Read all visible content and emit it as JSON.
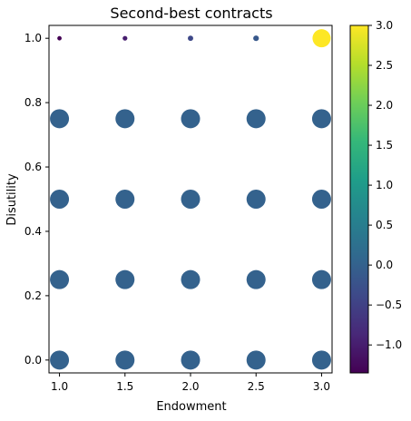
{
  "chart_data": {
    "type": "scatter",
    "title": "Second-best contracts",
    "xlabel": "Endowment",
    "ylabel": "Disutility",
    "xlim": [
      0.92,
      3.08
    ],
    "ylim": [
      -0.04,
      1.04
    ],
    "xticks": [
      1.0,
      1.5,
      2.0,
      2.5,
      3.0
    ],
    "xtick_labels": [
      "1.0",
      "1.5",
      "2.0",
      "2.5",
      "3.0"
    ],
    "yticks": [
      0.0,
      0.2,
      0.4,
      0.6,
      0.8,
      1.0
    ],
    "ytick_labels": [
      "0.0",
      "0.2",
      "0.4",
      "0.6",
      "0.8",
      "1.0"
    ],
    "grid": false,
    "colorbar": {
      "colormap": "viridis",
      "range": [
        -1.35,
        3.0
      ],
      "ticks": [
        -1.0,
        -0.5,
        0.0,
        0.5,
        1.0,
        1.5,
        2.0,
        2.5,
        3.0
      ],
      "tick_labels": [
        "−1.0",
        "−0.5",
        "0.0",
        "0.5",
        "1.0",
        "1.5",
        "2.0",
        "2.5",
        "3.0"
      ]
    },
    "points": [
      {
        "x": 1.0,
        "y": 0.0,
        "value": 0.0
      },
      {
        "x": 1.5,
        "y": 0.0,
        "value": 0.0
      },
      {
        "x": 2.0,
        "y": 0.0,
        "value": 0.0
      },
      {
        "x": 2.5,
        "y": 0.0,
        "value": 0.0
      },
      {
        "x": 3.0,
        "y": 0.0,
        "value": 0.0
      },
      {
        "x": 1.0,
        "y": 0.25,
        "value": 0.0
      },
      {
        "x": 1.5,
        "y": 0.25,
        "value": 0.0
      },
      {
        "x": 2.0,
        "y": 0.25,
        "value": 0.0
      },
      {
        "x": 2.5,
        "y": 0.25,
        "value": 0.0
      },
      {
        "x": 3.0,
        "y": 0.25,
        "value": 0.0
      },
      {
        "x": 1.0,
        "y": 0.5,
        "value": 0.0
      },
      {
        "x": 1.5,
        "y": 0.5,
        "value": 0.0
      },
      {
        "x": 2.0,
        "y": 0.5,
        "value": 0.0
      },
      {
        "x": 2.5,
        "y": 0.5,
        "value": 0.0
      },
      {
        "x": 3.0,
        "y": 0.5,
        "value": 0.0
      },
      {
        "x": 1.0,
        "y": 0.75,
        "value": 0.0
      },
      {
        "x": 1.5,
        "y": 0.75,
        "value": 0.0
      },
      {
        "x": 2.0,
        "y": 0.75,
        "value": 0.0
      },
      {
        "x": 2.5,
        "y": 0.75,
        "value": 0.0
      },
      {
        "x": 3.0,
        "y": 0.75,
        "value": 0.0
      },
      {
        "x": 1.0,
        "y": 1.0,
        "value": -1.35
      },
      {
        "x": 1.5,
        "y": 1.0,
        "value": -1.0
      },
      {
        "x": 2.0,
        "y": 1.0,
        "value": -0.4
      },
      {
        "x": 2.5,
        "y": 1.0,
        "value": -0.15
      },
      {
        "x": 3.0,
        "y": 1.0,
        "value": 3.0
      }
    ]
  }
}
